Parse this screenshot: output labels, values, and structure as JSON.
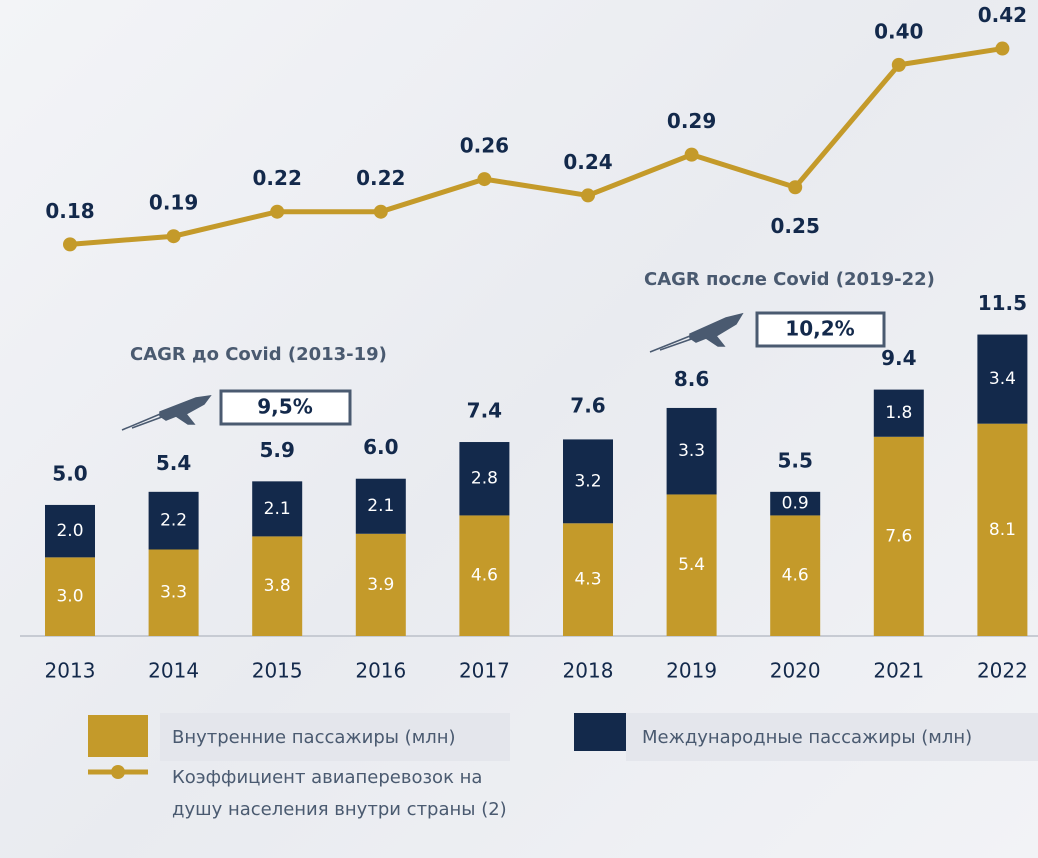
{
  "chart_data": {
    "type": "bar",
    "stacked": true,
    "categories": [
      "2013",
      "2014",
      "2015",
      "2016",
      "2017",
      "2018",
      "2019",
      "2020",
      "2021",
      "2022"
    ],
    "series": [
      {
        "name": "Внутренние пассажиры (млн)",
        "color": "#c49a2a",
        "values": [
          3.0,
          3.3,
          3.8,
          3.9,
          4.6,
          4.3,
          5.4,
          4.6,
          7.6,
          8.1
        ],
        "value_labels": [
          "3.0",
          "3.3",
          "3.8",
          "3.9",
          "4.6",
          "4.3",
          "5.4",
          "4.6",
          "7.6",
          "8.1"
        ]
      },
      {
        "name": "Международные пассажиры (млн)",
        "color": "#13294b",
        "values": [
          2.0,
          2.2,
          2.1,
          2.1,
          2.8,
          3.2,
          3.3,
          0.9,
          1.8,
          3.4
        ],
        "value_labels": [
          "2.0",
          "2.2",
          "2.1",
          "2.1",
          "2.8",
          "3.2",
          "3.3",
          "0.9",
          "1.8",
          "3.4"
        ]
      },
      {
        "name": "Коэффициент авиаперевозок на душу населения  внутри страны (2)",
        "color": "#c49a2a",
        "type": "line",
        "axis": "y2",
        "values": [
          0.18,
          0.19,
          0.22,
          0.22,
          0.26,
          0.24,
          0.29,
          0.25,
          0.4,
          0.42
        ],
        "value_labels": [
          "0.18",
          "0.19",
          "0.22",
          "0.22",
          "0.26",
          "0.24",
          "0.29",
          "0.25",
          "0.40",
          "0.42"
        ]
      }
    ],
    "totals": [
      5.0,
      5.4,
      5.9,
      6.0,
      7.4,
      7.6,
      8.6,
      5.5,
      9.4,
      11.5
    ],
    "total_labels": [
      "5.0",
      "5.4",
      "5.9",
      "6.0",
      "7.4",
      "7.6",
      "8.6",
      "5.5",
      "9.4",
      "11.5"
    ],
    "ylim": [
      0,
      23.5
    ],
    "y2lim": [
      -0.3,
      0.455
    ],
    "annotations": [
      {
        "text": "CAGR до Covid (2013-19)",
        "value": "9,5%"
      },
      {
        "text": "CAGR после Covid (2019-22)",
        "value": "10,2%"
      }
    ]
  }
}
